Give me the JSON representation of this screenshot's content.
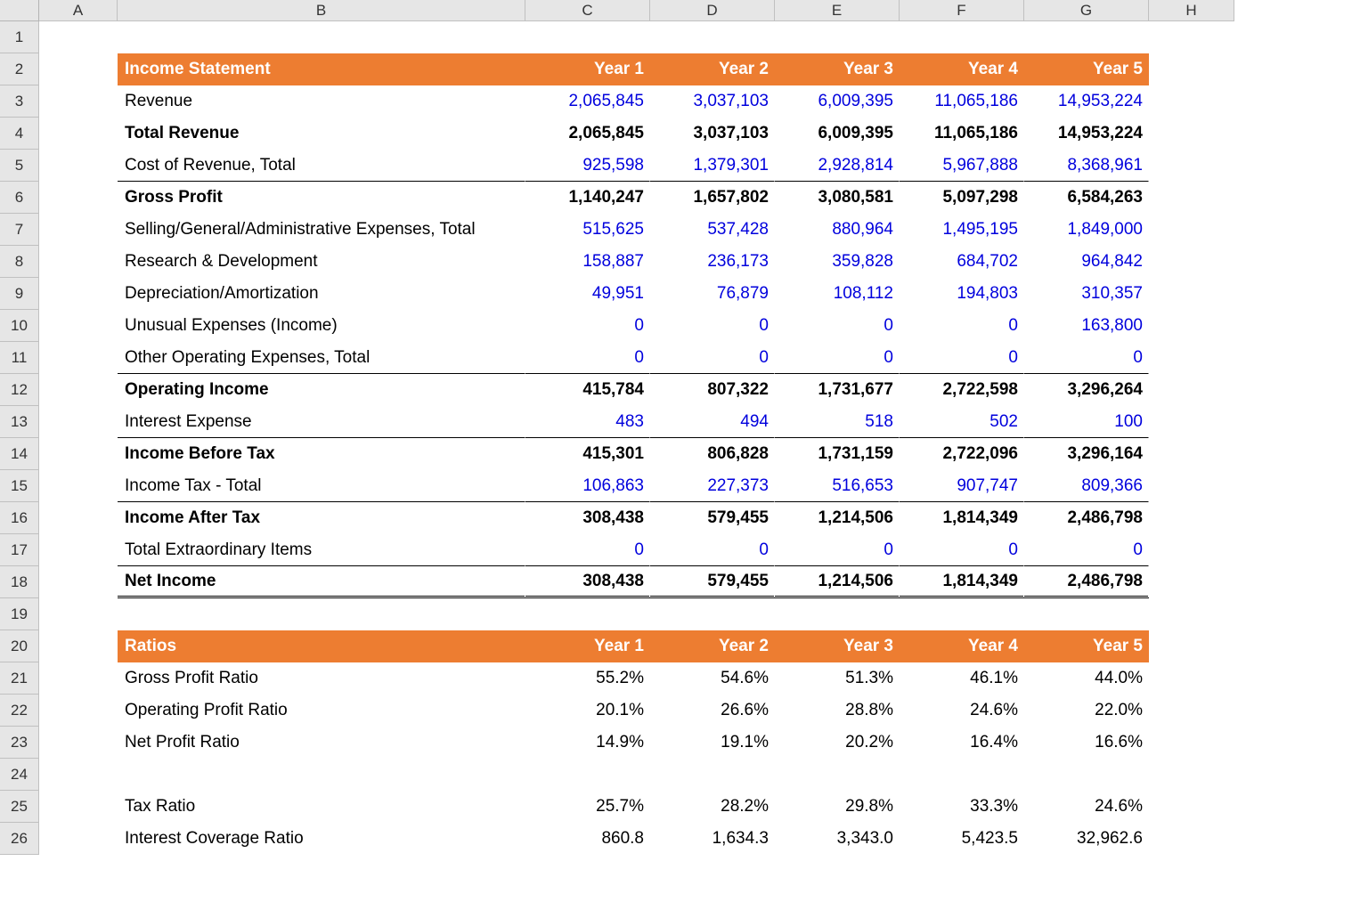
{
  "cols": [
    "A",
    "B",
    "C",
    "D",
    "E",
    "F",
    "G",
    "H"
  ],
  "row_count": 26,
  "colors": {
    "header_bg": "#ed7d31",
    "header_fg": "#ffffff",
    "value_blue": "#0000dd",
    "grid_header_bg": "#e6e6e6",
    "grid_line": "#c0c0c0"
  },
  "income": {
    "title": "Income Statement",
    "year_labels": [
      "Year 1",
      "Year 2",
      "Year 3",
      "Year 4",
      "Year 5"
    ],
    "rows": [
      {
        "label": "Revenue",
        "values": [
          "2,065,845",
          "3,037,103",
          "6,009,395",
          "11,065,186",
          "14,953,224"
        ],
        "style": "blue"
      },
      {
        "label": "Total Revenue",
        "values": [
          "2,065,845",
          "3,037,103",
          "6,009,395",
          "11,065,186",
          "14,953,224"
        ],
        "style": "bold"
      },
      {
        "label": "Cost of Revenue, Total",
        "values": [
          "925,598",
          "1,379,301",
          "2,928,814",
          "5,967,888",
          "8,368,961"
        ],
        "style": "blue",
        "border_bottom": "thin"
      },
      {
        "label": "Gross Profit",
        "values": [
          "1,140,247",
          "1,657,802",
          "3,080,581",
          "5,097,298",
          "6,584,263"
        ],
        "style": "bold"
      },
      {
        "label": "Selling/General/Administrative Expenses, Total",
        "values": [
          "515,625",
          "537,428",
          "880,964",
          "1,495,195",
          "1,849,000"
        ],
        "style": "blue"
      },
      {
        "label": "Research & Development",
        "values": [
          "158,887",
          "236,173",
          "359,828",
          "684,702",
          "964,842"
        ],
        "style": "blue"
      },
      {
        "label": "Depreciation/Amortization",
        "values": [
          "49,951",
          "76,879",
          "108,112",
          "194,803",
          "310,357"
        ],
        "style": "blue"
      },
      {
        "label": "Unusual Expenses (Income)",
        "values": [
          "0",
          "0",
          "0",
          "0",
          "163,800"
        ],
        "style": "blue"
      },
      {
        "label": "Other Operating Expenses, Total",
        "values": [
          "0",
          "0",
          "0",
          "0",
          "0"
        ],
        "style": "blue",
        "border_bottom": "thin"
      },
      {
        "label": "Operating Income",
        "values": [
          "415,784",
          "807,322",
          "1,731,677",
          "2,722,598",
          "3,296,264"
        ],
        "style": "bold"
      },
      {
        "label": "Interest Expense",
        "values": [
          "483",
          "494",
          "518",
          "502",
          "100"
        ],
        "style": "blue",
        "border_bottom": "thin"
      },
      {
        "label": "Income Before Tax",
        "values": [
          "415,301",
          "806,828",
          "1,731,159",
          "2,722,096",
          "3,296,164"
        ],
        "style": "bold"
      },
      {
        "label": "Income Tax - Total",
        "values": [
          "106,863",
          "227,373",
          "516,653",
          "907,747",
          "809,366"
        ],
        "style": "blue",
        "border_bottom": "thin"
      },
      {
        "label": "Income After Tax",
        "values": [
          "308,438",
          "579,455",
          "1,214,506",
          "1,814,349",
          "2,486,798"
        ],
        "style": "bold"
      },
      {
        "label": "Total Extraordinary Items",
        "values": [
          "0",
          "0",
          "0",
          "0",
          "0"
        ],
        "style": "blue",
        "border_bottom": "thin"
      },
      {
        "label": "Net Income",
        "values": [
          "308,438",
          "579,455",
          "1,214,506",
          "1,814,349",
          "2,486,798"
        ],
        "style": "bold",
        "border_bottom": "double"
      }
    ]
  },
  "ratios": {
    "title": "Ratios",
    "year_labels": [
      "Year 1",
      "Year 2",
      "Year 3",
      "Year 4",
      "Year 5"
    ],
    "rows": [
      {
        "label": "Gross Profit Ratio",
        "values": [
          "55.2%",
          "54.6%",
          "51.3%",
          "46.1%",
          "44.0%"
        ]
      },
      {
        "label": "Operating Profit Ratio",
        "values": [
          "20.1%",
          "26.6%",
          "28.8%",
          "24.6%",
          "22.0%"
        ]
      },
      {
        "label": "Net Profit Ratio",
        "values": [
          "14.9%",
          "19.1%",
          "20.2%",
          "16.4%",
          "16.6%"
        ]
      },
      {
        "label": "",
        "values": [
          "",
          "",
          "",
          "",
          ""
        ]
      },
      {
        "label": "Tax Ratio",
        "values": [
          "25.7%",
          "28.2%",
          "29.8%",
          "33.3%",
          "24.6%"
        ]
      },
      {
        "label": "Interest Coverage Ratio",
        "values": [
          "860.8",
          "1,634.3",
          "3,343.0",
          "5,423.5",
          "32,962.6"
        ]
      }
    ]
  }
}
